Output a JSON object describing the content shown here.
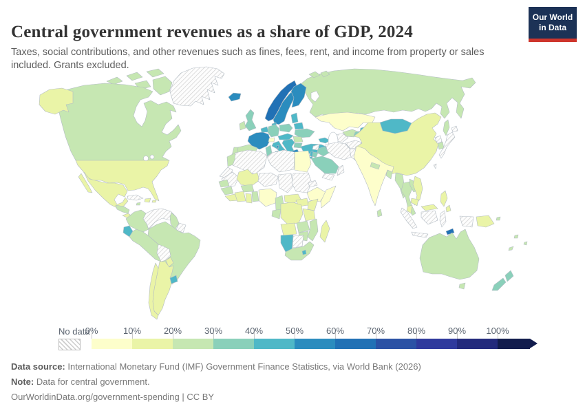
{
  "header": {
    "title": "Central government revenues as a share of GDP, 2024",
    "subtitle": "Taxes, social contributions, and other revenues such as fines, fees, rent, and income from property or sales included. Grants excluded.",
    "logo_line1": "Our World",
    "logo_line2": "in Data",
    "logo_bg": "#1c3256",
    "logo_accent": "#ce352c"
  },
  "legend": {
    "no_data_label": "No data",
    "ticks": [
      "0%",
      "10%",
      "20%",
      "30%",
      "40%",
      "50%",
      "60%",
      "70%",
      "80%",
      "90%",
      "100%"
    ],
    "segment_width": 59,
    "last_segment_width": 47
  },
  "footer": {
    "source_label": "Data source:",
    "source_text": " International Monetary Fund (IMF) Government Finance Statistics, via World Bank (2026)",
    "note_label": "Note:",
    "note_text": " Data for central government.",
    "citation": "OurWorldinData.org/government-spending | CC BY"
  },
  "map": {
    "palette": [
      "#fdfecb",
      "#eaf4a7",
      "#c6e7b2",
      "#8ad0ba",
      "#4fb8c7",
      "#2b8cbe",
      "#2171b5",
      "#2b52a5",
      "#2f3a9d",
      "#232a7c",
      "#121c4d"
    ],
    "border_color": "#b3bcc4",
    "regions": {
      "greenland": "nd",
      "canada": 2,
      "arctic1": 2,
      "arctic2": 2,
      "arctic3": 2,
      "arctic4": 2,
      "arctic5": 2,
      "arctic6": 2,
      "alaska": 1,
      "usa": 1,
      "mexico": 1,
      "baja": 1,
      "centralamerica": 2,
      "panama": 1,
      "cuba": "nd",
      "hispaniola": 1,
      "jamaica": 2,
      "puertorico": 1,
      "colombia": 2,
      "venezuela": "nd",
      "guyana": 2,
      "suriname": "nd",
      "ecuador": 4,
      "peru": 2,
      "brazil": 2,
      "bolivia": "nd",
      "paraguay": 1,
      "uruguay": 4,
      "argentina": 1,
      "chile": 1,
      "iceland": 5,
      "norway": 6,
      "sweden": 5,
      "finland": 5,
      "denmark": 4,
      "uk": 3,
      "ireland": 2,
      "benelux": 4,
      "germany": 3,
      "poland": 3,
      "baltics": 4,
      "belarus": 4,
      "ukraine": 3,
      "france": 5,
      "switzerland": 0,
      "austriacz": 4,
      "spain": 2,
      "portugal": 2,
      "italy": 4,
      "sicily": 4,
      "sardinia": 4,
      "corsica": 5,
      "balkans": 4,
      "romania": 2,
      "bulgaria": 3,
      "greece": 5,
      "crete": 5,
      "turkey": 4,
      "cyprus": 4,
      "caucasus": 4,
      "russia": 2,
      "novaya1": 2,
      "novaya2": 2,
      "sakhalin": 2,
      "kazakhstan": 0,
      "uzbekistan": 2,
      "turkmenistan": "nd",
      "kyrgyzstan": 4,
      "tajikistan": 3,
      "afghanistan": "nd",
      "pakistan": "nd",
      "iran": "nd",
      "iraq": 3,
      "syria": "nd",
      "israel": 4,
      "jordan": 3,
      "saudi": 3,
      "yemen": "nd",
      "oman": "nd",
      "morocco": 2,
      "wsahara": "nd",
      "algeria": "nd",
      "tunisia": 3,
      "libya": "nd",
      "egypt": 0,
      "mauritania": "nd",
      "mali": 1,
      "niger": "nd",
      "chad": "nd",
      "sudan": "nd",
      "eritrea": "nd",
      "ethiopia": 0,
      "somalia": 0,
      "senegal": 2,
      "guinea": 2,
      "sierraleone": 1,
      "ivorycoast": 1,
      "ghana": 1,
      "togobenin": 2,
      "burkina": 2,
      "nigeria": 0,
      "cameroon": 2,
      "car": 1,
      "ssudanuganda": 1,
      "kenya": 1,
      "gaboncongo": 2,
      "drc": 1,
      "tanzania": 1,
      "angola": 1,
      "zambia": 2,
      "malawimoz": 2,
      "zimbabwe": 2,
      "namibia": 4,
      "botswana": "nd",
      "southafrica": 2,
      "lesotho": 4,
      "madagascar": 1,
      "mongolia": 4,
      "china": 1,
      "northkorea": "nd",
      "southkorea": 2,
      "japan1": "nd",
      "japan2": "nd",
      "taiwan": "nd",
      "india": 0,
      "nepal": 2,
      "bangladesh": 2,
      "srilanka": 2,
      "myanmar": 2,
      "thailand": 2,
      "laos": 2,
      "vietnam": 1,
      "cambodia": 1,
      "philippines1": 1,
      "philippines2": 1,
      "malaysia": 1,
      "borneomalaysia": 1,
      "sumatra": "nd",
      "java": "nd",
      "kalimantan": "nd",
      "sulawesi": "nd",
      "papua": "nd",
      "timor": 6,
      "png": 1,
      "pngisland": 2,
      "australia": 2,
      "tasmania": 2,
      "nzn": 3,
      "nzs": 3,
      "fiji": 2,
      "vanuatu": 2,
      "newcaledonia": 2
    }
  }
}
